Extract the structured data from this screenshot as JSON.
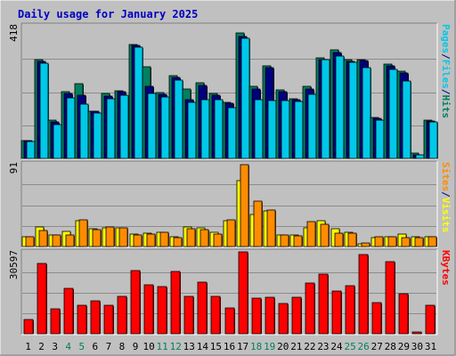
{
  "chart_data": {
    "type": "bar",
    "title": "Daily usage for January 2025",
    "categories": [
      "1",
      "2",
      "3",
      "4",
      "5",
      "6",
      "7",
      "8",
      "9",
      "10",
      "11",
      "12",
      "13",
      "14",
      "15",
      "16",
      "17",
      "18",
      "19",
      "20",
      "21",
      "22",
      "23",
      "24",
      "25",
      "26",
      "27",
      "28",
      "29",
      "30",
      "31"
    ],
    "weekend_days": [
      "4",
      "5",
      "11",
      "12",
      "18",
      "19",
      "25",
      "26"
    ],
    "panels": [
      {
        "name": "top",
        "max_label": "418",
        "ymax": 418,
        "right_label": [
          "Pages",
          "/",
          "Files",
          "/",
          "Hits"
        ],
        "right_colors": [
          "#00c8e8",
          "#000080",
          "#00c8e8",
          "#000080",
          "#008060"
        ],
        "series": [
          {
            "name": "Hits",
            "color": "#008060",
            "values": [
              55,
              310,
              120,
              210,
              235,
              150,
              205,
              213,
              360,
              288,
              208,
              260,
              220,
              238,
              205,
              178,
              395,
              228,
              292,
              215,
              188,
              227,
              318,
              341,
              310,
              312,
              128,
              297,
              275,
              18,
              120
            ]
          },
          {
            "name": "Files",
            "color": "#000080",
            "values": [
              55,
              305,
              115,
              205,
              200,
              148,
              195,
              210,
              355,
              228,
              203,
              255,
              185,
              230,
              200,
              175,
              385,
              220,
              285,
              210,
              185,
              220,
              312,
              335,
              307,
              308,
              125,
              292,
              270,
              12,
              117
            ]
          },
          {
            "name": "Pages",
            "color": "#00c8e8",
            "values": [
              52,
              300,
              108,
              190,
              170,
              143,
              187,
              200,
              350,
              205,
              193,
              248,
              178,
              185,
              184,
              160,
              380,
              184,
              182,
              183,
              180,
              203,
              310,
              323,
              304,
              285,
              120,
              280,
              245,
              10,
              116
            ]
          }
        ]
      },
      {
        "name": "middle",
        "max_label": "91",
        "ymax": 91,
        "right_label": [
          "Sites",
          "/",
          "Visits"
        ],
        "right_colors": [
          "#ff8c00",
          "#000080",
          "#ffff00"
        ],
        "series": [
          {
            "name": "Visits",
            "color": "#ffff00",
            "values": [
              11,
              22,
              13,
              17,
              28,
              20,
              21,
              21,
              14,
              15,
              16,
              11,
              22,
              21,
              16,
              28,
              72,
              35,
              39,
              13,
              13,
              21,
              28,
              20,
              16,
              3,
              10,
              11,
              14,
              11,
              11
            ]
          },
          {
            "name": "Sites",
            "color": "#ff8c00",
            "values": [
              11,
              18,
              13,
              13,
              29,
              19,
              22,
              21,
              13,
              14,
              16,
              10,
              20,
              19,
              14,
              29,
              90,
              50,
              40,
              13,
              12,
              27,
              24,
              15,
              15,
              4,
              11,
              11,
              10,
              10,
              11
            ]
          }
        ]
      },
      {
        "name": "bottom",
        "max_label": "30597",
        "ymax": 30597,
        "right_label": [
          "KBytes"
        ],
        "right_colors": [
          "#ff0000"
        ],
        "series": [
          {
            "name": "KBytes",
            "color": "#ff0000",
            "values": [
              5200,
              26400,
              9400,
              16800,
              10600,
              12300,
              10800,
              14000,
              23600,
              18300,
              17500,
              23300,
              14100,
              19300,
              14000,
              9600,
              30597,
              13300,
              13700,
              11400,
              13700,
              18800,
              22300,
              15900,
              18000,
              29700,
              11600,
              26800,
              15000,
              700,
              10500
            ]
          }
        ]
      }
    ],
    "title_color": "#0000c0"
  }
}
